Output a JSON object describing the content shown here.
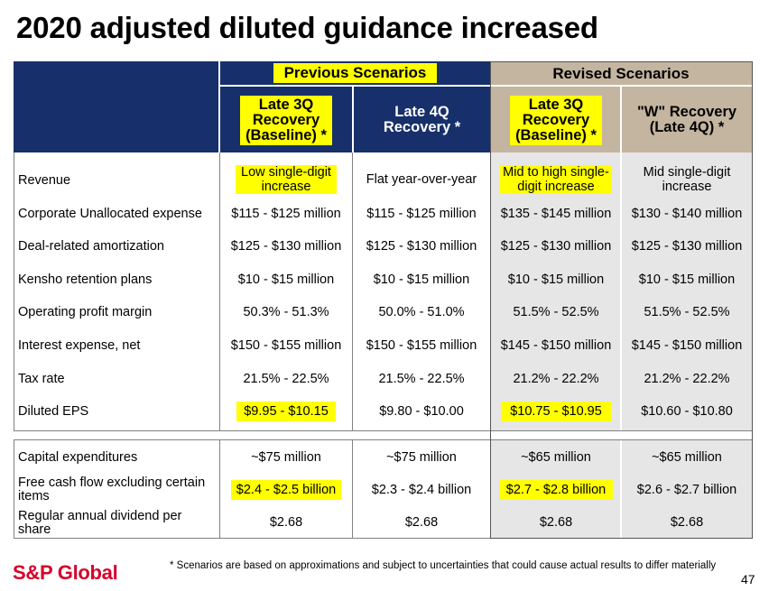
{
  "title": "2020 adjusted diluted guidance increased",
  "groups": {
    "previous": "Previous Scenarios",
    "revised": "Revised Scenarios"
  },
  "columns": [
    {
      "label": "Late 3Q Recovery (Baseline) *"
    },
    {
      "label": "Late 4Q Recovery *"
    },
    {
      "label": "Late 3Q Recovery (Baseline) *"
    },
    {
      "label": "\"W\" Recovery (Late 4Q) *"
    }
  ],
  "rows": [
    {
      "label": "Revenue",
      "values": [
        "Low single-digit increase",
        "Flat year-over-year",
        "Mid to high single-digit increase",
        "Mid single-digit increase"
      ]
    },
    {
      "label": "Corporate Unallocated expense",
      "values": [
        "$115 - $125 million",
        "$115 - $125 million",
        "$135 - $145 million",
        "$130 - $140 million"
      ]
    },
    {
      "label": "Deal-related amortization",
      "values": [
        "$125 - $130 million",
        "$125 - $130 million",
        "$125 - $130 million",
        "$125 - $130 million"
      ]
    },
    {
      "label": "Kensho retention plans",
      "values": [
        "$10 - $15 million",
        "$10 - $15 million",
        "$10 - $15 million",
        "$10 - $15 million"
      ]
    },
    {
      "label": "Operating profit margin",
      "values": [
        "50.3% - 51.3%",
        "50.0% - 51.0%",
        "51.5% - 52.5%",
        "51.5% - 52.5%"
      ]
    },
    {
      "label": "Interest expense, net",
      "values": [
        "$150 - $155 million",
        "$150 - $155 million",
        "$145 - $150 million",
        "$145 - $150 million"
      ]
    },
    {
      "label": "Tax rate",
      "values": [
        "21.5% - 22.5%",
        "21.5% - 22.5%",
        "21.2% - 22.2%",
        "21.2% - 22.2%"
      ]
    },
    {
      "label": "Diluted EPS",
      "values": [
        "$9.95 - $10.15",
        "$9.80 - $10.00",
        "$10.75 - $10.95",
        "$10.60 - $10.80"
      ]
    }
  ],
  "rows2": [
    {
      "label": "Capital expenditures",
      "values": [
        "~$75 million",
        "~$75 million",
        "~$65 million",
        "~$65 million"
      ]
    },
    {
      "label": "Free cash flow excluding certain items",
      "values": [
        "$2.4 - $2.5 billion",
        "$2.3 - $2.4 billion",
        "$2.7 - $2.8 billion",
        "$2.6 - $2.7 billion"
      ]
    },
    {
      "label": "Regular annual dividend per share",
      "values": [
        "$2.68",
        "$2.68",
        "$2.68",
        "$2.68"
      ]
    }
  ],
  "footer": {
    "logo": "S&P Global",
    "footnote": "* Scenarios are based on approximations and subject to uncertainties that could cause actual results to differ materially",
    "page": "47"
  },
  "colors": {
    "navy": "#17306b",
    "tan": "#c4b5a0",
    "grey": "#e6e6e6",
    "highlight": "#ffff00",
    "logo": "#d6002a"
  }
}
